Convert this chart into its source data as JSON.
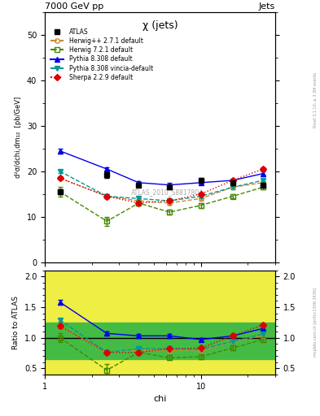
{
  "title_main": "χ (jets)",
  "header_left": "7000 GeV pp",
  "header_right": "Jets",
  "ylabel_main": "d²σ/dchi,dm₁₂  [pb/GeV]",
  "ylabel_ratio": "Ratio to ATLAS",
  "xlabel": "chi",
  "watermark": "ATLAS_2010_S8817804",
  "side_text": "mcplots.cern.ch [arXiv:1306.3436]",
  "side_text2": "Rivet 3.1.10; ≥ 3.3M events",
  "chi": [
    1.25,
    2.5,
    4.0,
    6.3,
    10.0,
    16.0,
    25.0
  ],
  "atlas_y": [
    15.5,
    19.2,
    17.0,
    16.5,
    18.0,
    17.5,
    17.0
  ],
  "atlas_yerr": [
    0.5,
    0.6,
    0.5,
    0.5,
    0.5,
    0.5,
    0.5
  ],
  "herwig271_y": [
    18.5,
    14.5,
    13.5,
    13.0,
    14.0,
    16.5,
    17.5
  ],
  "herwig721_y": [
    15.5,
    9.0,
    13.0,
    11.0,
    12.5,
    14.5,
    16.5
  ],
  "pythia8308_y": [
    24.5,
    20.5,
    17.5,
    17.0,
    17.5,
    18.0,
    19.5
  ],
  "pythia8308v_y": [
    20.0,
    14.5,
    14.0,
    13.5,
    14.5,
    16.5,
    18.0
  ],
  "sherpa229_y": [
    18.5,
    14.5,
    13.0,
    13.5,
    15.0,
    18.0,
    20.5
  ],
  "herwig271_yerr": [
    0.4,
    0.4,
    0.4,
    0.4,
    0.4,
    0.4,
    0.4
  ],
  "herwig721_yerr": [
    1.0,
    1.0,
    0.5,
    0.5,
    0.5,
    0.5,
    0.5
  ],
  "pythia8308_yerr": [
    0.5,
    0.4,
    0.4,
    0.4,
    0.4,
    0.4,
    0.4
  ],
  "pythia8308v_yerr": [
    0.4,
    0.4,
    0.4,
    0.4,
    0.4,
    0.4,
    0.4
  ],
  "sherpa229_yerr": [
    0.4,
    0.4,
    0.4,
    0.4,
    0.4,
    0.4,
    0.4
  ],
  "ratio_herwig271": [
    1.19,
    0.76,
    0.79,
    0.79,
    0.78,
    0.94,
    1.03
  ],
  "ratio_herwig721": [
    1.0,
    0.47,
    0.76,
    0.67,
    0.69,
    0.83,
    0.97
  ],
  "ratio_pythia8308": [
    1.58,
    1.07,
    1.03,
    1.03,
    0.97,
    1.03,
    1.15
  ],
  "ratio_pythia8308v": [
    1.29,
    0.76,
    0.82,
    0.82,
    0.81,
    0.94,
    1.06
  ],
  "ratio_sherpa229": [
    1.19,
    0.76,
    0.76,
    0.82,
    0.83,
    1.03,
    1.21
  ],
  "ratio_herwig271_err": [
    0.03,
    0.03,
    0.03,
    0.03,
    0.03,
    0.03,
    0.03
  ],
  "ratio_herwig721_err": [
    0.07,
    0.1,
    0.04,
    0.04,
    0.04,
    0.04,
    0.04
  ],
  "ratio_pythia8308_err": [
    0.04,
    0.03,
    0.03,
    0.03,
    0.03,
    0.03,
    0.03
  ],
  "ratio_pythia8308v_err": [
    0.03,
    0.03,
    0.03,
    0.03,
    0.03,
    0.03,
    0.03
  ],
  "ratio_sherpa229_err": [
    0.03,
    0.03,
    0.03,
    0.03,
    0.03,
    0.03,
    0.03
  ],
  "color_atlas": "#000000",
  "color_herwig271": "#cc8833",
  "color_herwig721": "#448800",
  "color_pythia8308": "#0000ee",
  "color_pythia8308v": "#009999",
  "color_sherpa229": "#dd0000",
  "ylim_main": [
    0,
    55
  ],
  "ylim_ratio": [
    0.4,
    2.1
  ],
  "xmin": 1.0,
  "xmax": 30.0,
  "band_yellow_color": "#eeee44",
  "band_green_color": "#44bb44",
  "band_green_lo": 0.65,
  "band_green_hi": 1.25
}
